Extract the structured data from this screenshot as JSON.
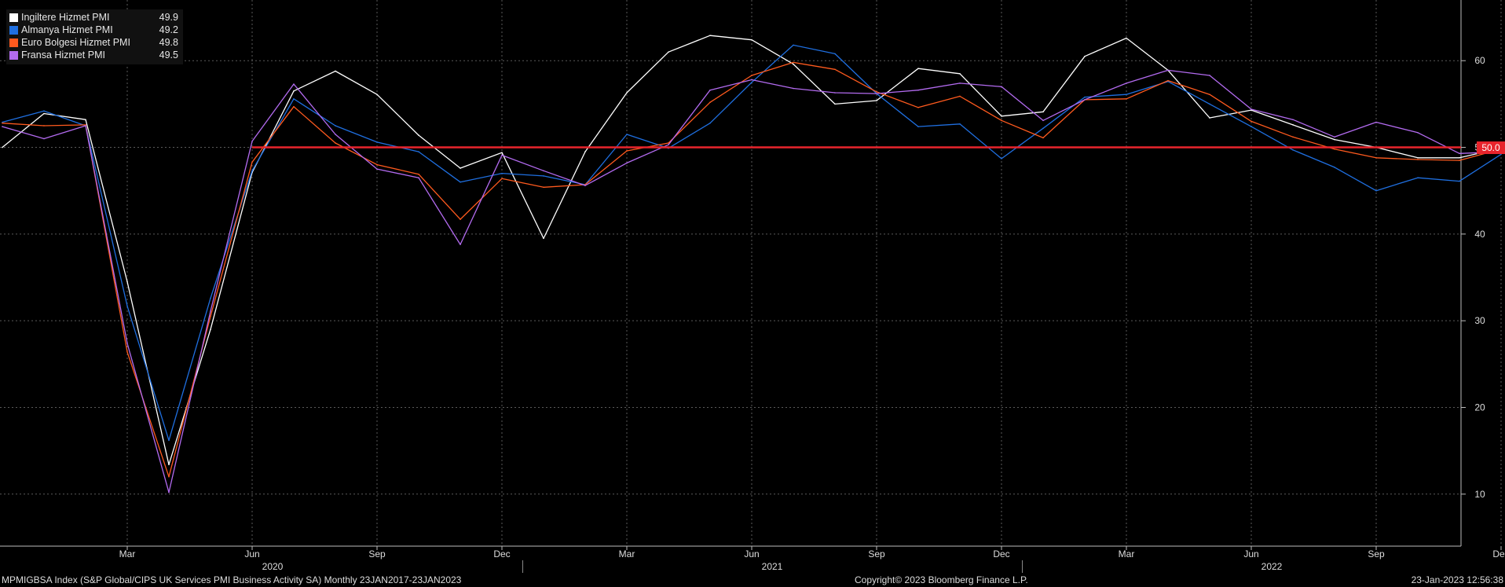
{
  "legend": [
    {
      "name": "Ingiltere Hizmet PMI",
      "value": "49.9",
      "color": "#ffffff"
    },
    {
      "name": "Almanya Hizmet PMI",
      "value": "49.2",
      "color": "#1f6fe0"
    },
    {
      "name": "Euro Bolgesi Hizmet PMI",
      "value": "49.8",
      "color": "#ff5a1e"
    },
    {
      "name": "Fransa Hizmet PMI",
      "value": "49.5",
      "color": "#b36bf0"
    }
  ],
  "reference": {
    "value": 50,
    "label": "50.0",
    "color": "#e8242c"
  },
  "footer": {
    "left": "MPMIGBSA Index (S&P Global/CIPS UK Services PMI Business Activity SA)  Monthly 23JAN2017-23JAN2023",
    "center": "Copyright© 2023 Bloomberg Finance L.P.",
    "right": "23-Jan-2023 12:56:38"
  },
  "chart_data": {
    "type": "line",
    "x": [
      "2019-12",
      "2020-01",
      "2020-02",
      "2020-03",
      "2020-04",
      "2020-05",
      "2020-06",
      "2020-07",
      "2020-08",
      "2020-09",
      "2020-10",
      "2020-11",
      "2020-12",
      "2021-01",
      "2021-02",
      "2021-03",
      "2021-04",
      "2021-05",
      "2021-06",
      "2021-07",
      "2021-08",
      "2021-09",
      "2021-10",
      "2021-11",
      "2021-12",
      "2022-01",
      "2022-02",
      "2022-03",
      "2022-04",
      "2022-05",
      "2022-06",
      "2022-07",
      "2022-08",
      "2022-09",
      "2022-10",
      "2022-11",
      "2022-12"
    ],
    "x_tick_labels": [
      {
        "x": "2020-03",
        "label": "Mar"
      },
      {
        "x": "2020-06",
        "label": "Jun"
      },
      {
        "x": "2020-09",
        "label": "Sep"
      },
      {
        "x": "2020-12",
        "label": "Dec"
      },
      {
        "x": "2021-03",
        "label": "Mar"
      },
      {
        "x": "2021-06",
        "label": "Jun"
      },
      {
        "x": "2021-09",
        "label": "Sep"
      },
      {
        "x": "2021-12",
        "label": "Dec"
      },
      {
        "x": "2022-03",
        "label": "Mar"
      },
      {
        "x": "2022-06",
        "label": "Jun"
      },
      {
        "x": "2022-09",
        "label": "Sep"
      },
      {
        "x": "2022-12",
        "label": "Dec"
      }
    ],
    "x_year_labels": [
      {
        "x": "2020-06",
        "label": "2020"
      },
      {
        "x": "2021-06",
        "label": "2021"
      },
      {
        "x": "2022-06",
        "label": "2022"
      }
    ],
    "y_ticks": [
      10,
      20,
      30,
      40,
      50,
      60
    ],
    "ylim": [
      4,
      67
    ],
    "y_axis_side": "right",
    "grid": true,
    "legend_position": "top-left",
    "series": [
      {
        "name": "Ingiltere Hizmet PMI",
        "color": "#ffffff",
        "values": [
          50.0,
          53.9,
          53.2,
          34.5,
          13.4,
          29.0,
          47.1,
          56.5,
          58.8,
          56.1,
          51.4,
          47.6,
          49.4,
          39.5,
          49.5,
          56.3,
          61.0,
          62.9,
          62.4,
          59.6,
          55.0,
          55.4,
          59.1,
          58.5,
          53.6,
          54.1,
          60.5,
          62.6,
          58.9,
          53.4,
          54.3,
          52.6,
          50.9,
          50.0,
          48.8,
          48.8,
          49.9
        ]
      },
      {
        "name": "Almanya Hizmet PMI",
        "color": "#1f6fe0",
        "values": [
          52.9,
          54.2,
          52.5,
          31.7,
          16.2,
          32.6,
          47.3,
          55.6,
          52.5,
          50.6,
          49.5,
          46.0,
          47.0,
          46.7,
          45.7,
          51.5,
          49.9,
          52.8,
          57.5,
          61.8,
          60.8,
          56.2,
          52.4,
          52.7,
          48.7,
          52.2,
          55.8,
          56.1,
          57.6,
          55.0,
          52.4,
          49.7,
          47.7,
          45.0,
          46.5,
          46.1,
          49.2
        ]
      },
      {
        "name": "Euro Bolgesi Hizmet PMI",
        "color": "#ff5a1e",
        "values": [
          52.8,
          52.5,
          52.6,
          26.4,
          12.0,
          30.5,
          48.3,
          54.7,
          50.5,
          48.0,
          46.9,
          41.7,
          46.4,
          45.4,
          45.7,
          49.6,
          50.5,
          55.2,
          58.3,
          59.8,
          59.0,
          56.4,
          54.6,
          55.9,
          53.1,
          51.1,
          55.5,
          55.6,
          57.7,
          56.1,
          53.0,
          51.2,
          49.8,
          48.8,
          48.6,
          48.5,
          49.8
        ]
      },
      {
        "name": "Fransa Hizmet PMI",
        "color": "#b36bf0",
        "values": [
          52.4,
          51.0,
          52.5,
          27.4,
          10.2,
          31.1,
          50.7,
          57.3,
          51.5,
          47.5,
          46.5,
          38.8,
          49.1,
          47.3,
          45.6,
          48.2,
          50.3,
          56.6,
          57.8,
          56.8,
          56.3,
          56.2,
          56.6,
          57.4,
          57.0,
          53.1,
          55.5,
          57.4,
          58.9,
          58.3,
          54.4,
          53.2,
          51.2,
          52.9,
          51.7,
          49.3,
          49.5
        ]
      }
    ]
  }
}
